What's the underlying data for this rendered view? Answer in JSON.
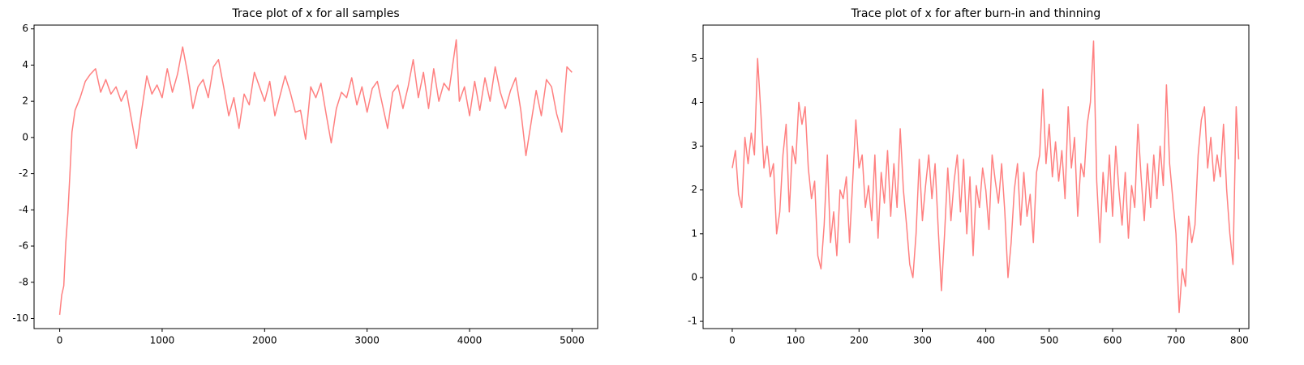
{
  "chart_data": [
    {
      "type": "line",
      "title": "Trace plot of x for all samples",
      "xlim": [
        -250,
        5250
      ],
      "ylim": [
        -10.56,
        6.21
      ],
      "xticks": [
        0,
        1000,
        2000,
        3000,
        4000,
        5000
      ],
      "yticks": [
        -10,
        -8,
        -6,
        -4,
        -2,
        0,
        2,
        4,
        6
      ],
      "grid": false,
      "series": [
        {
          "color": "#ff8080",
          "x": [
            0,
            20,
            40,
            60,
            80,
            100,
            120,
            150,
            200,
            250,
            300,
            350,
            400,
            450,
            500,
            550,
            600,
            650,
            700,
            750,
            800,
            850,
            900,
            950,
            1000,
            1050,
            1100,
            1150,
            1200,
            1250,
            1300,
            1350,
            1400,
            1450,
            1500,
            1550,
            1600,
            1650,
            1700,
            1750,
            1800,
            1850,
            1900,
            1950,
            2000,
            2050,
            2100,
            2150,
            2200,
            2250,
            2300,
            2350,
            2400,
            2450,
            2500,
            2550,
            2600,
            2650,
            2700,
            2750,
            2800,
            2850,
            2900,
            2950,
            3000,
            3050,
            3100,
            3150,
            3200,
            3250,
            3300,
            3350,
            3400,
            3450,
            3500,
            3550,
            3600,
            3650,
            3700,
            3750,
            3800,
            3850,
            3870,
            3900,
            3950,
            4000,
            4050,
            4100,
            4150,
            4200,
            4250,
            4300,
            4350,
            4400,
            4450,
            4500,
            4550,
            4600,
            4650,
            4700,
            4750,
            4800,
            4850,
            4900,
            4950,
            4999
          ],
          "values": [
            -9.8,
            -8.7,
            -8.2,
            -5.8,
            -4.2,
            -2,
            0.3,
            1.5,
            2.2,
            3.1,
            3.5,
            3.8,
            2.5,
            3.2,
            2.4,
            2.8,
            2.0,
            2.6,
            1.0,
            -0.6,
            1.5,
            3.4,
            2.4,
            2.9,
            2.2,
            3.8,
            2.5,
            3.5,
            5.0,
            3.5,
            1.6,
            2.8,
            3.2,
            2.2,
            3.9,
            4.3,
            2.8,
            1.2,
            2.2,
            0.5,
            2.4,
            1.8,
            3.6,
            2.8,
            2.0,
            3.1,
            1.2,
            2.3,
            3.4,
            2.5,
            1.4,
            1.5,
            -0.1,
            2.8,
            2.2,
            3.0,
            1.3,
            -0.3,
            1.6,
            2.5,
            2.2,
            3.3,
            1.8,
            2.8,
            1.4,
            2.7,
            3.1,
            1.8,
            0.5,
            2.5,
            2.9,
            1.6,
            2.8,
            4.3,
            2.2,
            3.6,
            1.6,
            3.8,
            2.0,
            3.0,
            2.6,
            4.6,
            5.4,
            2.0,
            2.8,
            1.2,
            3.1,
            1.5,
            3.3,
            2.0,
            3.9,
            2.5,
            1.6,
            2.6,
            3.3,
            1.5,
            -1.0,
            0.8,
            2.6,
            1.2,
            3.2,
            2.8,
            1.3,
            0.3,
            3.9,
            3.6
          ]
        }
      ]
    },
    {
      "type": "line",
      "title": "Trace plot of x for after burn-in and thinning",
      "xlim": [
        -46,
        815
      ],
      "ylim": [
        -1.165,
        5.765
      ],
      "xticks": [
        0,
        100,
        200,
        300,
        400,
        500,
        600,
        700,
        800
      ],
      "yticks": [
        -1,
        0,
        1,
        2,
        3,
        4,
        5
      ],
      "grid": false,
      "series": [
        {
          "color": "#ff8080",
          "x": [
            0,
            5,
            10,
            15,
            20,
            25,
            30,
            35,
            40,
            45,
            50,
            55,
            60,
            65,
            70,
            75,
            80,
            85,
            90,
            95,
            100,
            105,
            110,
            115,
            120,
            125,
            130,
            135,
            140,
            145,
            150,
            155,
            160,
            165,
            170,
            175,
            180,
            185,
            190,
            195,
            200,
            205,
            210,
            215,
            220,
            225,
            230,
            235,
            240,
            245,
            250,
            255,
            260,
            265,
            270,
            275,
            280,
            285,
            290,
            295,
            300,
            305,
            310,
            315,
            320,
            325,
            330,
            335,
            340,
            345,
            350,
            355,
            360,
            365,
            370,
            375,
            380,
            385,
            390,
            395,
            400,
            405,
            410,
            415,
            420,
            425,
            430,
            435,
            440,
            445,
            450,
            455,
            460,
            465,
            470,
            475,
            480,
            485,
            490,
            495,
            500,
            505,
            510,
            515,
            520,
            525,
            530,
            535,
            540,
            545,
            550,
            555,
            560,
            565,
            570,
            575,
            580,
            585,
            590,
            595,
            600,
            605,
            610,
            615,
            620,
            625,
            630,
            635,
            640,
            645,
            650,
            655,
            660,
            665,
            670,
            675,
            680,
            685,
            690,
            695,
            700,
            705,
            710,
            715,
            720,
            725,
            730,
            735,
            740,
            745,
            750,
            755,
            760,
            765,
            770,
            775,
            780,
            785,
            790,
            795,
            799
          ],
          "values": [
            2.5,
            2.9,
            1.9,
            1.6,
            3.2,
            2.6,
            3.3,
            2.8,
            5.0,
            3.8,
            2.5,
            3.0,
            2.3,
            2.6,
            1.0,
            1.5,
            2.8,
            3.5,
            1.5,
            3.0,
            2.6,
            4.0,
            3.5,
            3.9,
            2.5,
            1.8,
            2.2,
            0.5,
            0.2,
            1.2,
            2.8,
            0.8,
            1.5,
            0.5,
            2.0,
            1.8,
            2.3,
            0.8,
            2.2,
            3.6,
            2.5,
            2.8,
            1.6,
            2.1,
            1.3,
            2.8,
            0.9,
            2.4,
            1.7,
            2.9,
            1.4,
            2.6,
            1.6,
            3.4,
            2.0,
            1.2,
            0.3,
            0.0,
            1.0,
            2.7,
            1.3,
            2.1,
            2.8,
            1.8,
            2.6,
            1.1,
            -0.3,
            1.0,
            2.5,
            1.3,
            2.2,
            2.8,
            1.5,
            2.7,
            1.0,
            2.3,
            0.5,
            2.1,
            1.6,
            2.5,
            2.0,
            1.1,
            2.8,
            2.2,
            1.7,
            2.6,
            1.5,
            0.0,
            0.8,
            2.0,
            2.6,
            1.2,
            2.4,
            1.4,
            1.9,
            0.8,
            2.4,
            2.8,
            4.3,
            2.6,
            3.5,
            2.3,
            3.1,
            2.2,
            2.9,
            1.8,
            3.9,
            2.5,
            3.2,
            1.4,
            2.6,
            2.3,
            3.5,
            4.0,
            5.4,
            2.2,
            0.8,
            2.4,
            1.5,
            2.8,
            1.4,
            3.0,
            2.0,
            1.2,
            2.4,
            0.9,
            2.1,
            1.6,
            3.5,
            2.3,
            1.3,
            2.6,
            1.6,
            2.8,
            1.8,
            3.0,
            2.1,
            4.4,
            2.6,
            1.8,
            1.0,
            -0.8,
            0.2,
            -0.2,
            1.4,
            0.8,
            1.2,
            2.8,
            3.6,
            3.9,
            2.5,
            3.2,
            2.2,
            2.8,
            2.3,
            3.5,
            2.0,
            1.0,
            0.3,
            3.9,
            2.7
          ]
        }
      ]
    }
  ]
}
